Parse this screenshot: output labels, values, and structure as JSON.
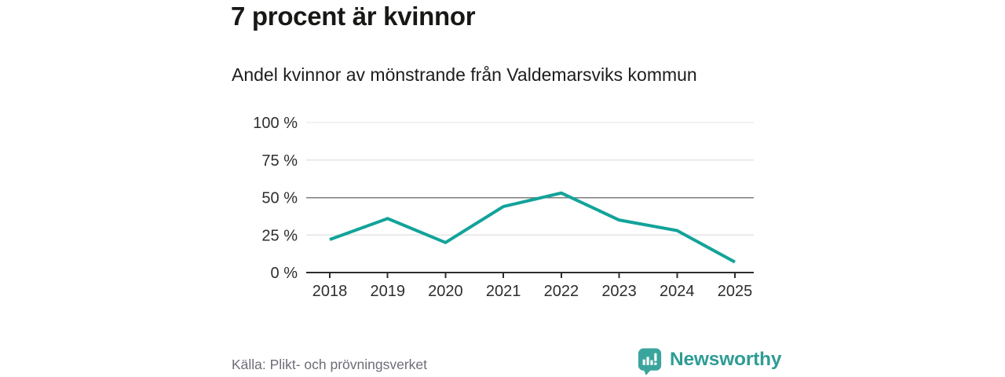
{
  "header": {
    "title": "7 procent är kvinnor",
    "subtitle": "Andel kvinnor av mönstrande från Valdemarsviks kommun"
  },
  "chart_data": {
    "type": "line",
    "title": "7 procent är kvinnor",
    "subtitle": "Andel kvinnor av mönstrande från Valdemarsviks kommun",
    "categories": [
      "2018",
      "2019",
      "2020",
      "2021",
      "2022",
      "2023",
      "2024",
      "2025"
    ],
    "values": [
      22,
      36,
      20,
      44,
      53,
      35,
      28,
      7
    ],
    "series_name": "Andel kvinnor av mönstrande (%)",
    "xlabel": "",
    "ylabel": "",
    "ylim": [
      0,
      100
    ],
    "ytick_values": [
      0,
      25,
      50,
      75,
      100
    ],
    "ytick_labels": [
      "0 %",
      "25 %",
      "50 %",
      "75 %",
      "100 %"
    ],
    "emphasized_gridline": 50,
    "grid": true,
    "legend": false,
    "line_color": "#12a39a"
  },
  "footer": {
    "source": "Källa: Plikt- och prövningsverket",
    "brand": "Newsworthy"
  },
  "colors": {
    "line": "#12a39a",
    "brand_text": "#2e9c95",
    "brand_bubble": "#3aa59d",
    "grid_light": "#e4e4e4",
    "grid_strong": "#7d7d7d",
    "axis": "#2d2d2d",
    "source_text": "#6e6d78"
  }
}
